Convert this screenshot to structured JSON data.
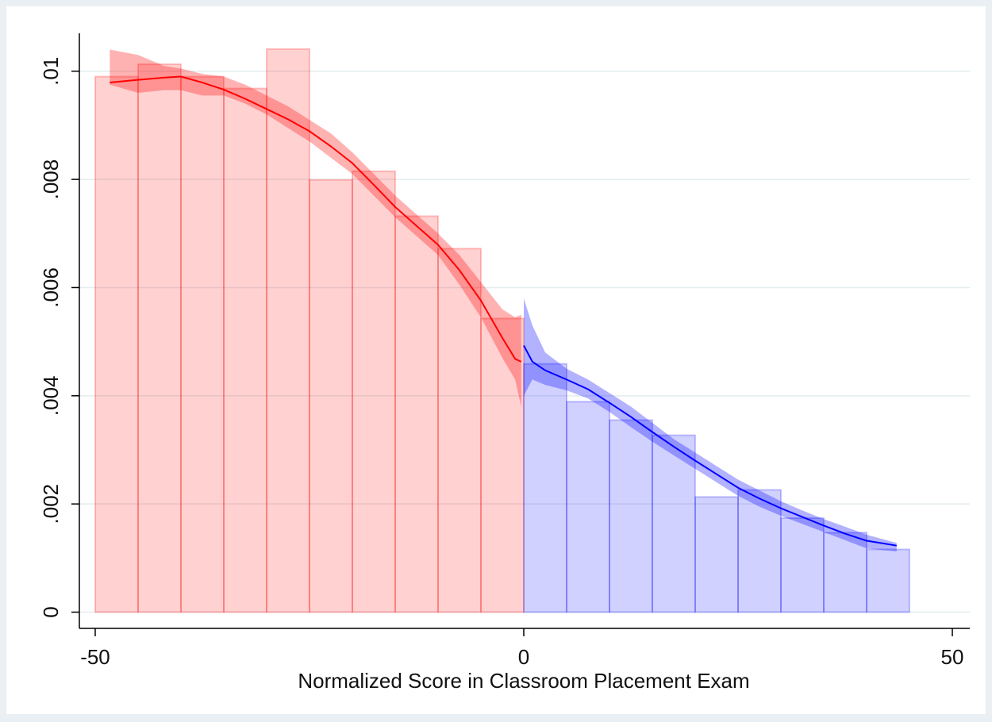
{
  "chart_data": {
    "type": "histogram",
    "xlabel": "Normalized Score in Classroom Placement Exam",
    "xlim": [
      -51.85,
      51.85
    ],
    "ylim": [
      -0.0003,
      0.0107
    ],
    "xticks": [
      -50,
      0,
      50
    ],
    "yticks": [
      0,
      {
        "value": 0.002,
        "label": ".002"
      },
      {
        "value": 0.004,
        "label": ".004"
      },
      {
        "value": 0.006,
        "label": ".006"
      },
      {
        "value": 0.008,
        "label": ".008"
      },
      {
        "value": 0.01,
        "label": ".01"
      }
    ],
    "grid": true,
    "series": [
      {
        "color": "#ff0000",
        "bins": [
          -50,
          -45,
          -40,
          -35,
          -30,
          -25,
          -20,
          -15,
          -10,
          -5,
          0
        ],
        "values": [
          0.0099,
          0.01013,
          0.0099,
          0.00968,
          0.01041,
          0.00799,
          0.00815,
          0.00732,
          0.00672,
          0.00543
        ]
      },
      {
        "color": "#0000ff",
        "bins": [
          0,
          5,
          10,
          15,
          20,
          25,
          30,
          35,
          40,
          45
        ],
        "values": [
          0.00459,
          0.00389,
          0.00355,
          0.00327,
          0.00213,
          0.00226,
          0.00174,
          0.00147,
          0.00116
        ]
      }
    ],
    "fits": [
      {
        "color": "#ff0000",
        "x": [
          -48.3,
          -45,
          -42,
          -40,
          -37.5,
          -35,
          -32.5,
          -30,
          -27.5,
          -25,
          -22.5,
          -20,
          -17.5,
          -15,
          -12.5,
          -10,
          -7.5,
          -5,
          -2.5,
          -1,
          -0.3
        ],
        "values": [
          0.00979,
          0.00984,
          0.00988,
          0.0099,
          0.00979,
          0.00966,
          0.00949,
          0.0093,
          0.00911,
          0.00889,
          0.00861,
          0.0083,
          0.0079,
          0.00749,
          0.00714,
          0.00679,
          0.00632,
          0.00576,
          0.00507,
          0.00468,
          0.00463
        ],
        "ci_upper": [
          0.0104,
          0.0103,
          0.0101,
          0.01005,
          0.00995,
          0.0099,
          0.00975,
          0.00955,
          0.00935,
          0.0091,
          0.00885,
          0.0085,
          0.0081,
          0.0077,
          0.00735,
          0.007,
          0.0066,
          0.0061,
          0.0056,
          0.00545,
          0.0055
        ],
        "ci_lower": [
          0.00975,
          0.0096,
          0.00965,
          0.00965,
          0.00955,
          0.00955,
          0.0094,
          0.0092,
          0.00895,
          0.0087,
          0.0084,
          0.0081,
          0.0077,
          0.0073,
          0.00695,
          0.0066,
          0.00605,
          0.00545,
          0.0047,
          0.0043,
          0.0038
        ]
      },
      {
        "color": "#0000ff",
        "x": [
          0,
          1,
          2.5,
          5,
          7.5,
          10,
          12.5,
          15,
          17.5,
          20,
          22.5,
          25,
          27.5,
          30,
          32.5,
          35,
          37.5,
          40,
          43.5
        ],
        "values": [
          0.00493,
          0.00463,
          0.00447,
          0.0043,
          0.00412,
          0.00387,
          0.00361,
          0.00333,
          0.00306,
          0.0028,
          0.00255,
          0.0023,
          0.0021,
          0.00192,
          0.00176,
          0.0016,
          0.00145,
          0.00132,
          0.00123
        ],
        "ci_upper": [
          0.0058,
          0.0053,
          0.0048,
          0.0045,
          0.0043,
          0.00405,
          0.0038,
          0.0035,
          0.0032,
          0.00295,
          0.0027,
          0.00245,
          0.00225,
          0.00205,
          0.00188,
          0.00172,
          0.00158,
          0.00143,
          0.00128
        ],
        "ci_lower": [
          0.004,
          0.0043,
          0.0042,
          0.0041,
          0.00395,
          0.0037,
          0.00342,
          0.00315,
          0.0029,
          0.00265,
          0.0024,
          0.00215,
          0.00195,
          0.00178,
          0.00163,
          0.00148,
          0.00133,
          0.00118,
          0.00112
        ]
      }
    ]
  }
}
